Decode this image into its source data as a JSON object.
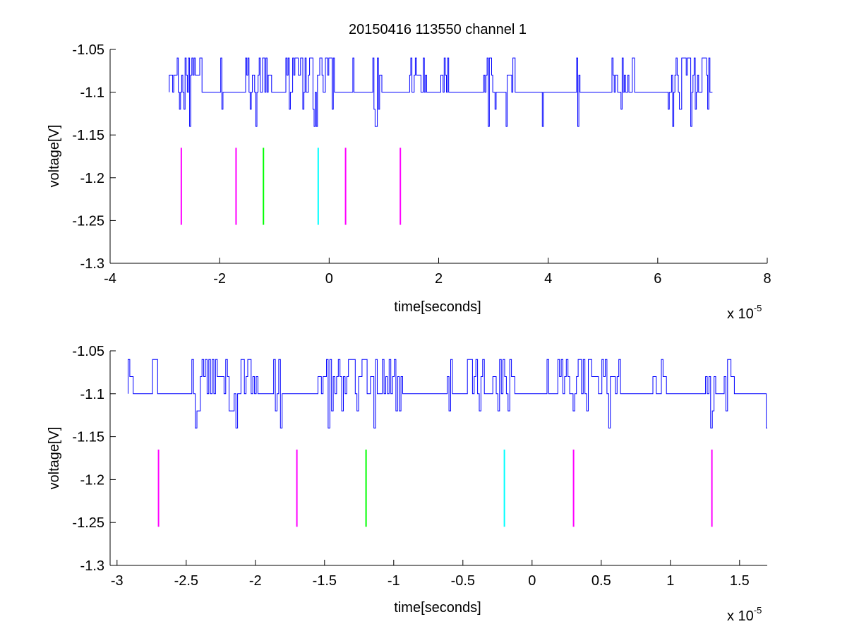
{
  "chart_data": [
    {
      "type": "line",
      "title": "20150416 113550 channel 1",
      "xlabel": "time[seconds]",
      "ylabel": "voltage[V]",
      "x_exponent_base": "x 10",
      "x_exponent_power": "-5",
      "xlim": [
        -4,
        8
      ],
      "ylim": [
        -1.3,
        -1.05
      ],
      "xticks": [
        -4,
        -2,
        0,
        2,
        4,
        6,
        8
      ],
      "xtick_labels": [
        "-4",
        "-2",
        "0",
        "2",
        "4",
        "6",
        "8"
      ],
      "yticks": [
        -1.3,
        -1.25,
        -1.2,
        -1.15,
        -1.1,
        -1.05
      ],
      "ytick_labels": [
        "-1.3",
        "-1.25",
        "-1.2",
        "-1.15",
        "-1.1",
        "-1.05"
      ],
      "grid": false,
      "signal": {
        "color": "#0000ff",
        "x_start": -2.92,
        "x_end": 7.0,
        "baseline": -1.1,
        "levels": [
          -1.06,
          -1.08,
          -1.1,
          -1.12,
          -1.14
        ]
      },
      "markers": [
        {
          "x": -2.7,
          "y_top": -1.165,
          "y_bottom": -1.255,
          "color": "#ff00ff"
        },
        {
          "x": -1.7,
          "y_top": -1.165,
          "y_bottom": -1.255,
          "color": "#ff00ff"
        },
        {
          "x": -1.2,
          "y_top": -1.165,
          "y_bottom": -1.255,
          "color": "#00ff00"
        },
        {
          "x": -0.2,
          "y_top": -1.165,
          "y_bottom": -1.255,
          "color": "#00ffff"
        },
        {
          "x": 0.3,
          "y_top": -1.165,
          "y_bottom": -1.255,
          "color": "#ff00ff"
        },
        {
          "x": 1.3,
          "y_top": -1.165,
          "y_bottom": -1.255,
          "color": "#ff00ff"
        }
      ]
    },
    {
      "type": "line",
      "title": "",
      "xlabel": "time[seconds]",
      "ylabel": "voltage[V]",
      "x_exponent_base": "x 10",
      "x_exponent_power": "-5",
      "xlim": [
        -3.05,
        1.7
      ],
      "ylim": [
        -1.3,
        -1.05
      ],
      "xticks": [
        -3,
        -2.5,
        -2,
        -1.5,
        -1,
        -0.5,
        0,
        0.5,
        1,
        1.5
      ],
      "xtick_labels": [
        "-3",
        "-2.5",
        "-2",
        "-1.5",
        "-1",
        "-0.5",
        "0",
        "0.5",
        "1",
        "1.5"
      ],
      "yticks": [
        -1.3,
        -1.25,
        -1.2,
        -1.15,
        -1.1,
        -1.05
      ],
      "ytick_labels": [
        "-1.3",
        "-1.25",
        "-1.2",
        "-1.15",
        "-1.1",
        "-1.05"
      ],
      "grid": false,
      "signal": {
        "color": "#0000ff",
        "x_start": -2.92,
        "x_end": 1.7,
        "baseline": -1.1,
        "levels": [
          -1.06,
          -1.08,
          -1.1,
          -1.12,
          -1.14
        ]
      },
      "markers": [
        {
          "x": -2.7,
          "y_top": -1.165,
          "y_bottom": -1.255,
          "color": "#ff00ff"
        },
        {
          "x": -1.7,
          "y_top": -1.165,
          "y_bottom": -1.255,
          "color": "#ff00ff"
        },
        {
          "x": -1.2,
          "y_top": -1.165,
          "y_bottom": -1.255,
          "color": "#00ff00"
        },
        {
          "x": -0.2,
          "y_top": -1.165,
          "y_bottom": -1.255,
          "color": "#00ffff"
        },
        {
          "x": 0.3,
          "y_top": -1.165,
          "y_bottom": -1.255,
          "color": "#ff00ff"
        },
        {
          "x": 1.3,
          "y_top": -1.165,
          "y_bottom": -1.255,
          "color": "#ff00ff"
        }
      ]
    }
  ]
}
